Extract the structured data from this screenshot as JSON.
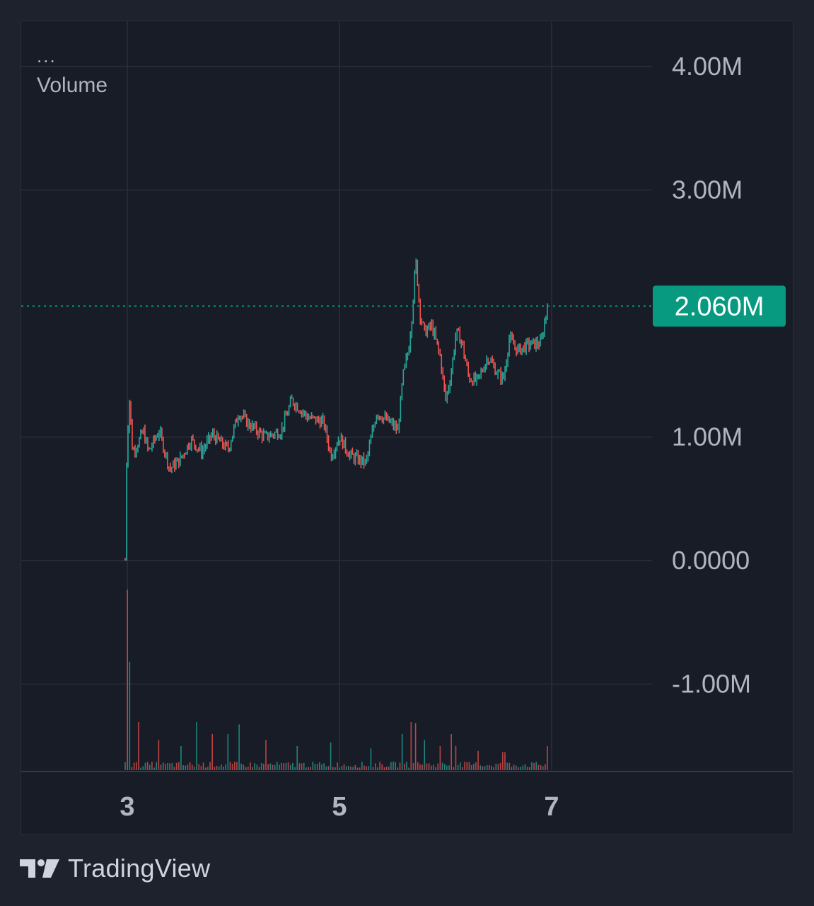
{
  "legend": {
    "menu": "...",
    "indicator_name": "Volume"
  },
  "branding": {
    "logo": "tradingview-logo",
    "name": "TradingView"
  },
  "colors": {
    "background": "#1e222d",
    "pane": "#181c27",
    "grid": "#2a2e39",
    "up": "#26a69a",
    "down": "#ef5350",
    "last_price_badge": "#089981",
    "axis_text": "#b2b5be"
  },
  "chart_data": {
    "type": "candlestick",
    "title": "",
    "y_axis": {
      "ticks": [
        4000000,
        3000000,
        1000000,
        0,
        -1000000
      ],
      "tick_labels": [
        "4.00M",
        "3.00M",
        "1.00M",
        "0.0000",
        "-1.00M"
      ],
      "range": [
        -1700000,
        4300000
      ]
    },
    "x_axis": {
      "ticks": [
        3,
        5,
        7
      ],
      "tick_labels": [
        "3",
        "5",
        "7"
      ],
      "range": [
        2,
        8
      ]
    },
    "last_value": 2060000,
    "last_value_label": "2.060M",
    "grid": true,
    "series": [
      {
        "type": "candlestick",
        "x_start": 2.98,
        "x_end": 6.96,
        "anchors": [
          [
            2.98,
            0.0
          ],
          [
            2.99,
            700000
          ],
          [
            3.0,
            1000000
          ],
          [
            3.02,
            1300000
          ],
          [
            3.03,
            1150000
          ],
          [
            3.05,
            880000
          ],
          [
            3.1,
            950000
          ],
          [
            3.15,
            1050000
          ],
          [
            3.2,
            880000
          ],
          [
            3.3,
            1050000
          ],
          [
            3.4,
            740000
          ],
          [
            3.5,
            820000
          ],
          [
            3.6,
            980000
          ],
          [
            3.7,
            880000
          ],
          [
            3.8,
            1020000
          ],
          [
            3.95,
            900000
          ],
          [
            4.05,
            1200000
          ],
          [
            4.15,
            1100000
          ],
          [
            4.3,
            1000000
          ],
          [
            4.45,
            1050000
          ],
          [
            4.55,
            1300000
          ],
          [
            4.7,
            1160000
          ],
          [
            4.85,
            1120000
          ],
          [
            4.92,
            850000
          ],
          [
            5.0,
            1000000
          ],
          [
            5.1,
            850000
          ],
          [
            5.25,
            790000
          ],
          [
            5.35,
            1200000
          ],
          [
            5.5,
            1100000
          ],
          [
            5.55,
            1050000
          ],
          [
            5.6,
            1500000
          ],
          [
            5.65,
            1700000
          ],
          [
            5.68,
            1950000
          ],
          [
            5.72,
            2430000
          ],
          [
            5.76,
            2000000
          ],
          [
            5.8,
            1850000
          ],
          [
            5.87,
            1900000
          ],
          [
            5.95,
            1650000
          ],
          [
            6.0,
            1300000
          ],
          [
            6.05,
            1500000
          ],
          [
            6.1,
            1850000
          ],
          [
            6.15,
            1780000
          ],
          [
            6.22,
            1480000
          ],
          [
            6.3,
            1450000
          ],
          [
            6.4,
            1650000
          ],
          [
            6.5,
            1500000
          ],
          [
            6.55,
            1480000
          ],
          [
            6.6,
            1800000
          ],
          [
            6.68,
            1700000
          ],
          [
            6.78,
            1750000
          ],
          [
            6.9,
            1760000
          ],
          [
            6.96,
            2060000
          ]
        ],
        "volume_spikes": [
          [
            3.0,
            1500000
          ],
          [
            3.01,
            1300000
          ],
          [
            3.03,
            900000
          ],
          [
            3.1,
            400000
          ],
          [
            3.3,
            250000
          ],
          [
            3.5,
            200000
          ],
          [
            3.65,
            400000
          ],
          [
            3.8,
            300000
          ],
          [
            3.95,
            300000
          ],
          [
            4.05,
            380000
          ],
          [
            4.3,
            250000
          ],
          [
            4.6,
            200000
          ],
          [
            4.92,
            230000
          ],
          [
            5.3,
            180000
          ],
          [
            5.6,
            300000
          ],
          [
            5.68,
            400000
          ],
          [
            5.72,
            390000
          ],
          [
            5.8,
            250000
          ],
          [
            5.95,
            200000
          ],
          [
            6.05,
            300000
          ],
          [
            6.1,
            200000
          ],
          [
            6.3,
            160000
          ],
          [
            6.55,
            150000
          ],
          [
            6.96,
            200000
          ]
        ]
      }
    ]
  }
}
